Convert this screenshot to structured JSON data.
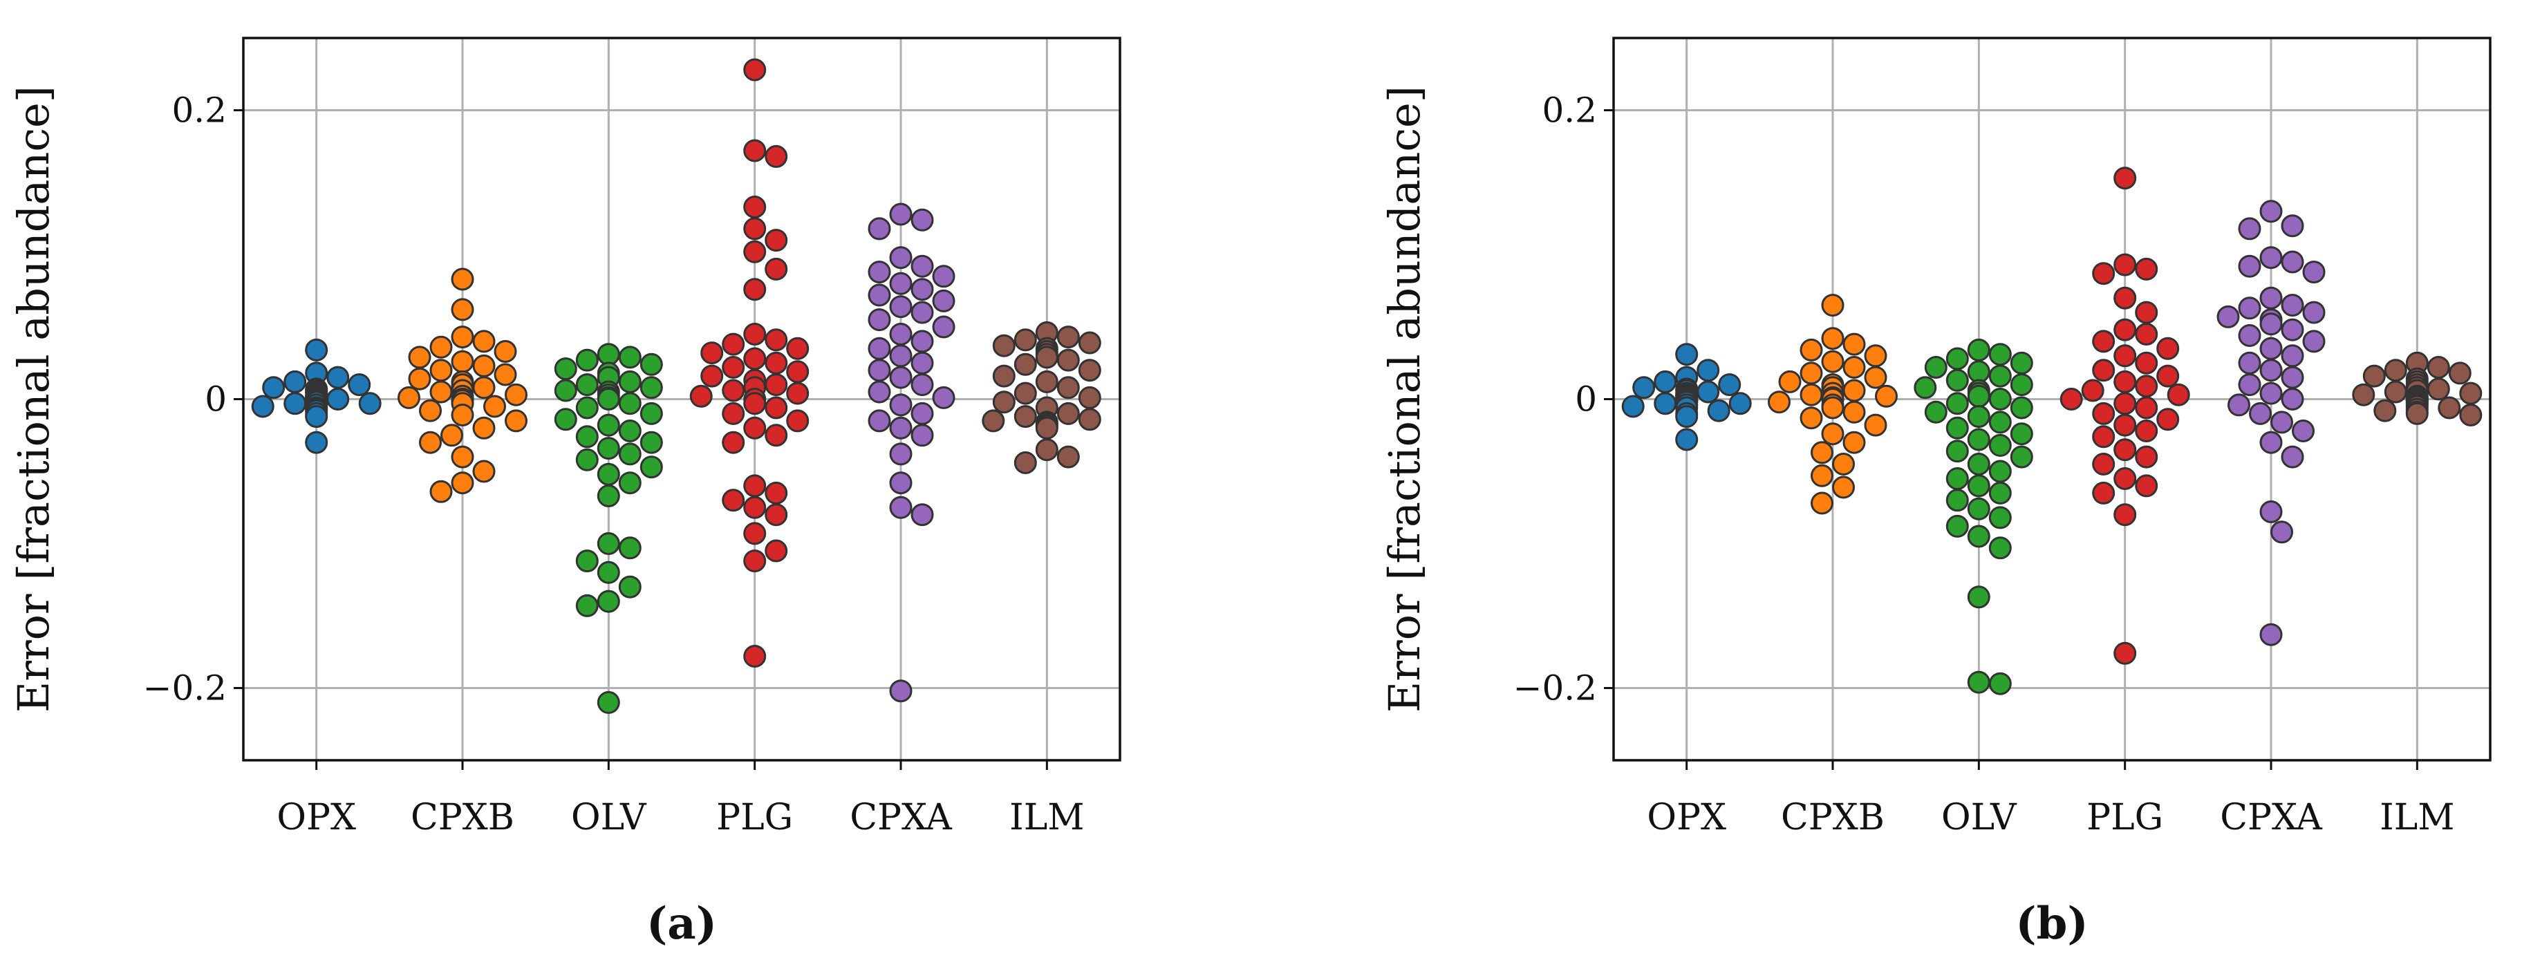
{
  "chart_data": [
    {
      "type": "scatter",
      "panel_label": "(a)",
      "ylabel": "Error [fractional abundance]",
      "categories": [
        "OPX",
        "CPXB",
        "OLV",
        "PLG",
        "CPXA",
        "ILM"
      ],
      "y_ticks": [
        -0.2,
        0,
        0.2
      ],
      "y_tick_labels": [
        "−0.2",
        "0",
        "0.2"
      ],
      "ylim": [
        -0.25,
        0.25
      ],
      "grid": true,
      "colors": [
        "#1f77b4",
        "#ff7f0e",
        "#2ca02c",
        "#d62728",
        "#9467bd",
        "#8c564b"
      ],
      "series": [
        {
          "values": [
            0.034,
            0.018,
            0.015,
            0.012,
            0.01,
            0.008,
            0.007,
            0.006,
            0.005,
            0.004,
            0.003,
            0.002,
            0.002,
            0.001,
            0.001,
            0.0,
            0.0,
            -0.001,
            -0.001,
            -0.002,
            -0.002,
            -0.003,
            -0.003,
            -0.004,
            -0.004,
            -0.005,
            -0.006,
            -0.007,
            -0.008,
            -0.01,
            -0.012,
            -0.03
          ]
        },
        {
          "values": [
            0.083,
            0.062,
            0.043,
            0.04,
            0.036,
            0.033,
            0.029,
            0.026,
            0.023,
            0.02,
            0.017,
            0.014,
            0.012,
            0.01,
            0.008,
            0.006,
            0.005,
            0.003,
            0.002,
            0.001,
            0.0,
            0.0,
            -0.001,
            -0.003,
            -0.005,
            -0.008,
            -0.011,
            -0.015,
            -0.02,
            -0.025,
            -0.03,
            -0.04,
            -0.05,
            -0.058,
            -0.064
          ]
        },
        {
          "values": [
            0.031,
            0.029,
            0.027,
            0.024,
            0.021,
            0.018,
            0.015,
            0.012,
            0.01,
            0.008,
            0.006,
            0.005,
            0.003,
            0.001,
            0.0,
            -0.003,
            -0.006,
            -0.01,
            -0.014,
            -0.018,
            -0.022,
            -0.026,
            -0.03,
            -0.034,
            -0.038,
            -0.042,
            -0.047,
            -0.052,
            -0.058,
            -0.067,
            -0.1,
            -0.103,
            -0.112,
            -0.12,
            -0.13,
            -0.14,
            -0.143,
            -0.21
          ]
        },
        {
          "values": [
            0.228,
            0.172,
            0.168,
            0.133,
            0.118,
            0.11,
            0.102,
            0.09,
            0.076,
            0.045,
            0.041,
            0.038,
            0.035,
            0.032,
            0.028,
            0.025,
            0.022,
            0.019,
            0.016,
            0.013,
            0.01,
            0.008,
            0.006,
            0.004,
            0.002,
            0.0,
            -0.003,
            -0.006,
            -0.01,
            -0.015,
            -0.02,
            -0.025,
            -0.03,
            -0.06,
            -0.065,
            -0.07,
            -0.075,
            -0.08,
            -0.093,
            -0.105,
            -0.112,
            -0.178
          ]
        },
        {
          "values": [
            0.128,
            0.124,
            0.118,
            0.098,
            0.092,
            0.088,
            0.085,
            0.08,
            0.076,
            0.072,
            0.068,
            0.064,
            0.06,
            0.055,
            0.05,
            0.045,
            0.04,
            0.035,
            0.03,
            0.025,
            0.02,
            0.015,
            0.01,
            0.005,
            0.001,
            -0.004,
            -0.01,
            -0.015,
            -0.02,
            -0.025,
            -0.038,
            -0.058,
            -0.075,
            -0.08,
            -0.202
          ]
        },
        {
          "values": [
            0.046,
            0.043,
            0.041,
            0.039,
            0.037,
            0.035,
            0.033,
            0.031,
            0.029,
            0.027,
            0.024,
            0.02,
            0.016,
            0.012,
            0.008,
            0.004,
            0.001,
            -0.002,
            -0.006,
            -0.01,
            -0.012,
            -0.014,
            -0.015,
            -0.016,
            -0.017,
            -0.018,
            -0.019,
            -0.02,
            -0.035,
            -0.04,
            -0.044
          ]
        }
      ]
    },
    {
      "type": "scatter",
      "panel_label": "(b)",
      "ylabel": "Error [fractional abundance]",
      "categories": [
        "OPX",
        "CPXB",
        "OLV",
        "PLG",
        "CPXA",
        "ILM"
      ],
      "y_ticks": [
        -0.2,
        0,
        0.2
      ],
      "y_tick_labels": [
        "−0.2",
        "0",
        "0.2"
      ],
      "ylim": [
        -0.25,
        0.25
      ],
      "grid": true,
      "colors": [
        "#1f77b4",
        "#ff7f0e",
        "#2ca02c",
        "#d62728",
        "#9467bd",
        "#8c564b"
      ],
      "series": [
        {
          "values": [
            0.031,
            0.02,
            0.015,
            0.012,
            0.01,
            0.008,
            0.007,
            0.006,
            0.005,
            0.004,
            0.003,
            0.002,
            0.002,
            0.001,
            0.001,
            0.0,
            0.0,
            -0.001,
            -0.001,
            -0.002,
            -0.002,
            -0.003,
            -0.003,
            -0.004,
            -0.004,
            -0.005,
            -0.006,
            -0.008,
            -0.01,
            -0.012,
            -0.028
          ]
        },
        {
          "values": [
            0.065,
            0.042,
            0.038,
            0.034,
            0.03,
            0.026,
            0.022,
            0.018,
            0.015,
            0.012,
            0.01,
            0.008,
            0.006,
            0.004,
            0.003,
            0.002,
            0.001,
            0.0,
            0.0,
            -0.002,
            -0.004,
            -0.006,
            -0.009,
            -0.013,
            -0.018,
            -0.024,
            -0.03,
            -0.037,
            -0.045,
            -0.053,
            -0.061,
            -0.072
          ]
        },
        {
          "values": [
            0.034,
            0.031,
            0.028,
            0.025,
            0.022,
            0.019,
            0.016,
            0.013,
            0.01,
            0.008,
            0.006,
            0.004,
            0.002,
            0.0,
            -0.003,
            -0.006,
            -0.009,
            -0.012,
            -0.016,
            -0.02,
            -0.024,
            -0.028,
            -0.032,
            -0.036,
            -0.04,
            -0.045,
            -0.05,
            -0.055,
            -0.06,
            -0.065,
            -0.07,
            -0.076,
            -0.082,
            -0.088,
            -0.095,
            -0.103,
            -0.137,
            -0.196,
            -0.197
          ]
        },
        {
          "values": [
            0.153,
            0.093,
            0.09,
            0.087,
            0.07,
            0.06,
            0.048,
            0.045,
            0.04,
            0.035,
            0.03,
            0.025,
            0.02,
            0.016,
            0.012,
            0.009,
            0.006,
            0.003,
            0.0,
            -0.003,
            -0.006,
            -0.01,
            -0.014,
            -0.018,
            -0.022,
            -0.026,
            -0.035,
            -0.04,
            -0.045,
            -0.055,
            -0.06,
            -0.065,
            -0.08,
            -0.176
          ]
        },
        {
          "values": [
            0.13,
            0.12,
            0.118,
            0.098,
            0.095,
            0.092,
            0.088,
            0.07,
            0.065,
            0.063,
            0.06,
            0.057,
            0.055,
            0.052,
            0.048,
            0.044,
            0.04,
            0.035,
            0.03,
            0.025,
            0.02,
            0.015,
            0.01,
            0.004,
            0.0,
            -0.004,
            -0.01,
            -0.016,
            -0.022,
            -0.03,
            -0.04,
            -0.078,
            -0.092,
            -0.163
          ]
        },
        {
          "values": [
            0.025,
            0.022,
            0.02,
            0.018,
            0.016,
            0.014,
            0.012,
            0.01,
            0.008,
            0.007,
            0.006,
            0.005,
            0.004,
            0.003,
            0.002,
            0.001,
            0.0,
            0.0,
            -0.001,
            -0.001,
            -0.002,
            -0.003,
            -0.004,
            -0.005,
            -0.006,
            -0.007,
            -0.008,
            -0.009,
            -0.01,
            -0.011
          ]
        }
      ]
    }
  ]
}
